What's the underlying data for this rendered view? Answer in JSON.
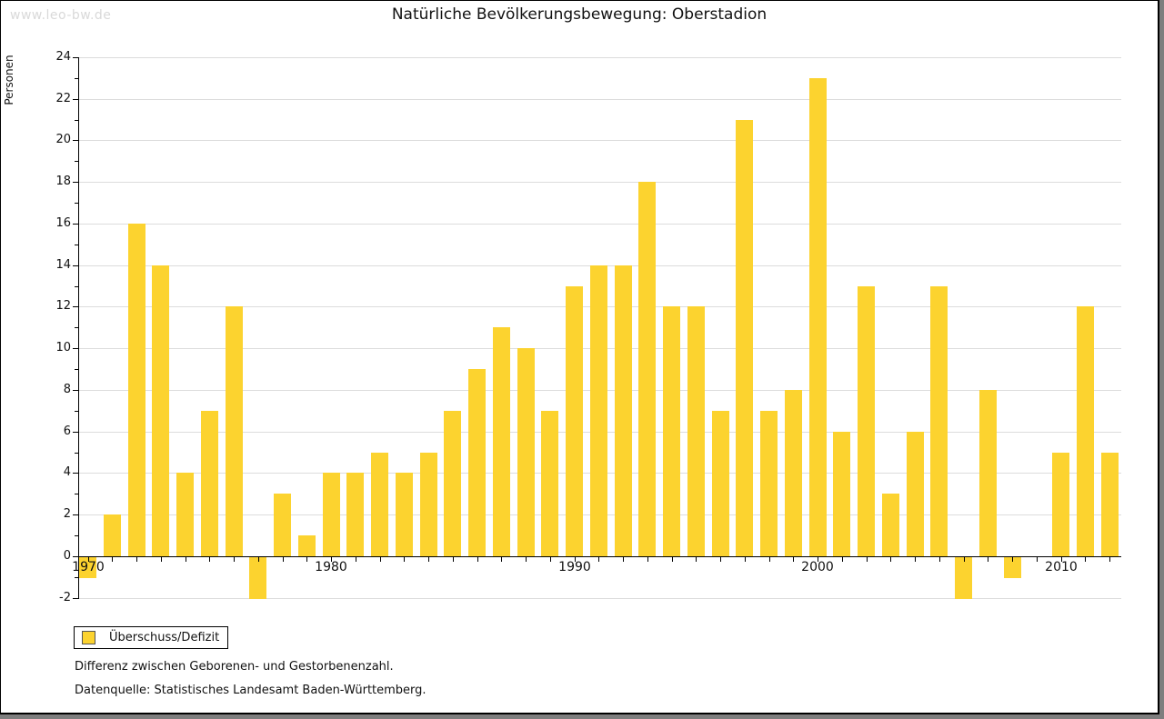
{
  "watermark": "www.leo-bw.de",
  "title": "Natürliche Bevölkerungsbewegung: Oberstadion",
  "legend": {
    "label": "Überschuss/Defizit"
  },
  "footnotes": {
    "line1": "Differenz zwischen Geborenen- und Gestorbenenzahl.",
    "line2": "Datenquelle: Statistisches Landesamt Baden-Württemberg."
  },
  "chart_data": {
    "type": "bar",
    "title": "Natürliche Bevölkerungsbewegung: Oberstadion",
    "xlabel": "",
    "ylabel": "Personen",
    "ylim": [
      -2,
      24
    ],
    "ytick_step": 2,
    "grid": true,
    "legend_position": "bottom-left",
    "bar_color": "#fcd32f",
    "series_name": "Überschuss/Defizit",
    "categories": [
      1970,
      1971,
      1972,
      1973,
      1974,
      1975,
      1976,
      1977,
      1978,
      1979,
      1980,
      1981,
      1982,
      1983,
      1984,
      1985,
      1986,
      1987,
      1988,
      1989,
      1990,
      1991,
      1992,
      1993,
      1994,
      1995,
      1996,
      1997,
      1998,
      1999,
      2000,
      2001,
      2002,
      2003,
      2004,
      2005,
      2006,
      2007,
      2008,
      2009,
      2010,
      2011,
      2012
    ],
    "values": [
      -1,
      2,
      16,
      14,
      4,
      7,
      12,
      -2,
      3,
      1,
      4,
      4,
      5,
      4,
      5,
      7,
      9,
      11,
      10,
      7,
      13,
      14,
      14,
      18,
      12,
      12,
      7,
      21,
      7,
      8,
      23,
      6,
      13,
      3,
      6,
      13,
      -2,
      8,
      -1,
      0,
      5,
      12,
      5
    ],
    "x_axis_labels": [
      1970,
      1980,
      1990,
      2000,
      2010
    ]
  }
}
